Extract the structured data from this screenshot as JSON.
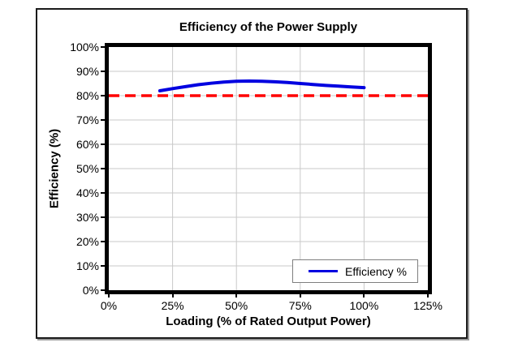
{
  "chart_data": {
    "type": "line",
    "title": "Efficiency of the Power Supply",
    "xlabel": "Loading (% of Rated Output Power)",
    "ylabel": "Efficiency (%)",
    "xlim": [
      0,
      125
    ],
    "ylim": [
      0,
      100
    ],
    "grid": true,
    "x_ticks": [
      {
        "value": 0,
        "label": "0%"
      },
      {
        "value": 25,
        "label": "25%"
      },
      {
        "value": 50,
        "label": "50%"
      },
      {
        "value": 75,
        "label": "75%"
      },
      {
        "value": 100,
        "label": "100%"
      },
      {
        "value": 125,
        "label": "125%"
      }
    ],
    "y_ticks": [
      {
        "value": 0,
        "label": "0%"
      },
      {
        "value": 10,
        "label": "10%"
      },
      {
        "value": 20,
        "label": "20%"
      },
      {
        "value": 30,
        "label": "30%"
      },
      {
        "value": 40,
        "label": "40%"
      },
      {
        "value": 50,
        "label": "50%"
      },
      {
        "value": 60,
        "label": "60%"
      },
      {
        "value": 70,
        "label": "70%"
      },
      {
        "value": 80,
        "label": "80%"
      },
      {
        "value": 90,
        "label": "90%"
      },
      {
        "value": 100,
        "label": "100%"
      }
    ],
    "series": [
      {
        "name": "Efficiency %",
        "color": "#0000e0",
        "line_width": 4,
        "smooth": true,
        "x": [
          20,
          25,
          30,
          35,
          40,
          45,
          50,
          55,
          60,
          65,
          70,
          75,
          80,
          85,
          90,
          95,
          100
        ],
        "y": [
          82.0,
          82.9,
          83.7,
          84.5,
          85.1,
          85.6,
          85.9,
          86.0,
          85.9,
          85.7,
          85.4,
          85.0,
          84.6,
          84.2,
          83.9,
          83.6,
          83.3
        ]
      }
    ],
    "reference_line": {
      "y": 80,
      "color": "#ff0000",
      "style": "dashed",
      "width": 3.5
    },
    "legend": {
      "position": "bottom-right-inside",
      "entries": [
        {
          "label": "Efficiency %",
          "color": "#0000e0"
        }
      ]
    },
    "colors": {
      "gridline": "#c9c9c9",
      "plot_border": "#000000",
      "frame_border": "#1a1a1a"
    }
  }
}
